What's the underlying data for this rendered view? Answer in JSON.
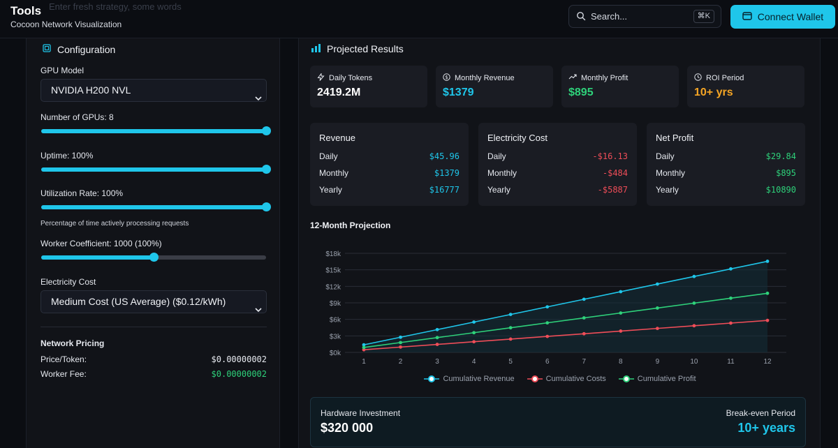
{
  "colors": {
    "accent": "#1fc6ea",
    "revenue": "#1fc6ea",
    "cost": "#ef4d58",
    "profit": "#2ed17a",
    "warning": "#f5a524"
  },
  "header": {
    "ghost": "Enter fresh strategy, some words",
    "title": "Tools",
    "subtitle": "Cocoon Network Visualization",
    "search_label": "Search...",
    "search_shortcut": "⌘K",
    "connect_label": "Connect Wallet"
  },
  "config": {
    "title": "Configuration",
    "gpu_model_label": "GPU Model",
    "gpu_model_value": "NVIDIA H200 NVL",
    "num_gpus_label": "Number of GPUs: 8",
    "num_gpus_fraction": 1.0,
    "uptime_label": "Uptime: 100%",
    "uptime_fraction": 1.0,
    "utilization_label": "Utilization Rate: 100%",
    "utilization_fraction": 1.0,
    "utilization_hint": "Percentage of time actively processing requests",
    "worker_coef_label": "Worker Coefficient: 1000 (100%)",
    "worker_coef_fraction": 0.5,
    "electricity_label": "Electricity Cost",
    "electricity_value": "Medium Cost (US Average) ($0.12/kWh)",
    "network_pricing_title": "Network Pricing",
    "price_token_label": "Price/Token:",
    "price_token_value": "$0.00000002",
    "worker_fee_label": "Worker Fee:",
    "worker_fee_value": "$0.00000002"
  },
  "results": {
    "title": "Projected Results",
    "stats": [
      {
        "label": "Daily Tokens",
        "value": "2419.2M",
        "icon": "bolt-icon"
      },
      {
        "label": "Monthly Revenue",
        "value": "$1379",
        "icon": "dollar-circle-icon"
      },
      {
        "label": "Monthly Profit",
        "value": "$895",
        "icon": "trend-up-icon"
      },
      {
        "label": "ROI Period",
        "value": "10+ yrs",
        "icon": "clock-icon"
      }
    ],
    "cards": [
      {
        "title": "Revenue",
        "rows": [
          {
            "label": "Daily",
            "value": "$45.96"
          },
          {
            "label": "Monthly",
            "value": "$1379"
          },
          {
            "label": "Yearly",
            "value": "$16777"
          }
        ]
      },
      {
        "title": "Electricity Cost",
        "rows": [
          {
            "label": "Daily",
            "value": "-$16.13"
          },
          {
            "label": "Monthly",
            "value": "-$484"
          },
          {
            "label": "Yearly",
            "value": "-$5887"
          }
        ]
      },
      {
        "title": "Net Profit",
        "rows": [
          {
            "label": "Daily",
            "value": "$29.84"
          },
          {
            "label": "Monthly",
            "value": "$895"
          },
          {
            "label": "Yearly",
            "value": "$10890"
          }
        ]
      }
    ],
    "projection_title": "12-Month Projection",
    "hardware_label": "Hardware Investment",
    "hardware_value": "$320 000",
    "breakeven_label": "Break-even Period",
    "breakeven_value": "10+ years"
  },
  "chart_data": {
    "type": "line",
    "title": "12-Month Projection",
    "x": [
      1,
      2,
      3,
      4,
      5,
      6,
      7,
      8,
      9,
      10,
      11,
      12
    ],
    "ylim": [
      0,
      18000
    ],
    "yticks": [
      0,
      3000,
      6000,
      9000,
      12000,
      15000,
      18000
    ],
    "ytick_labels": [
      "$0k",
      "$3k",
      "$6k",
      "$9k",
      "$12k",
      "$15k",
      "$18k"
    ],
    "series": [
      {
        "name": "Cumulative Revenue",
        "color": "#1fc6ea",
        "values": [
          1379,
          2758,
          4137,
          5516,
          6895,
          8274,
          9653,
          11032,
          12411,
          13790,
          15169,
          16548
        ]
      },
      {
        "name": "Cumulative Costs",
        "color": "#ef4d58",
        "values": [
          484,
          968,
          1452,
          1936,
          2420,
          2904,
          3388,
          3872,
          4356,
          4840,
          5324,
          5808
        ]
      },
      {
        "name": "Cumulative Profit",
        "color": "#2ed17a",
        "values": [
          895,
          1790,
          2685,
          3580,
          4475,
          5370,
          6265,
          7160,
          8055,
          8950,
          9845,
          10740
        ]
      }
    ]
  }
}
